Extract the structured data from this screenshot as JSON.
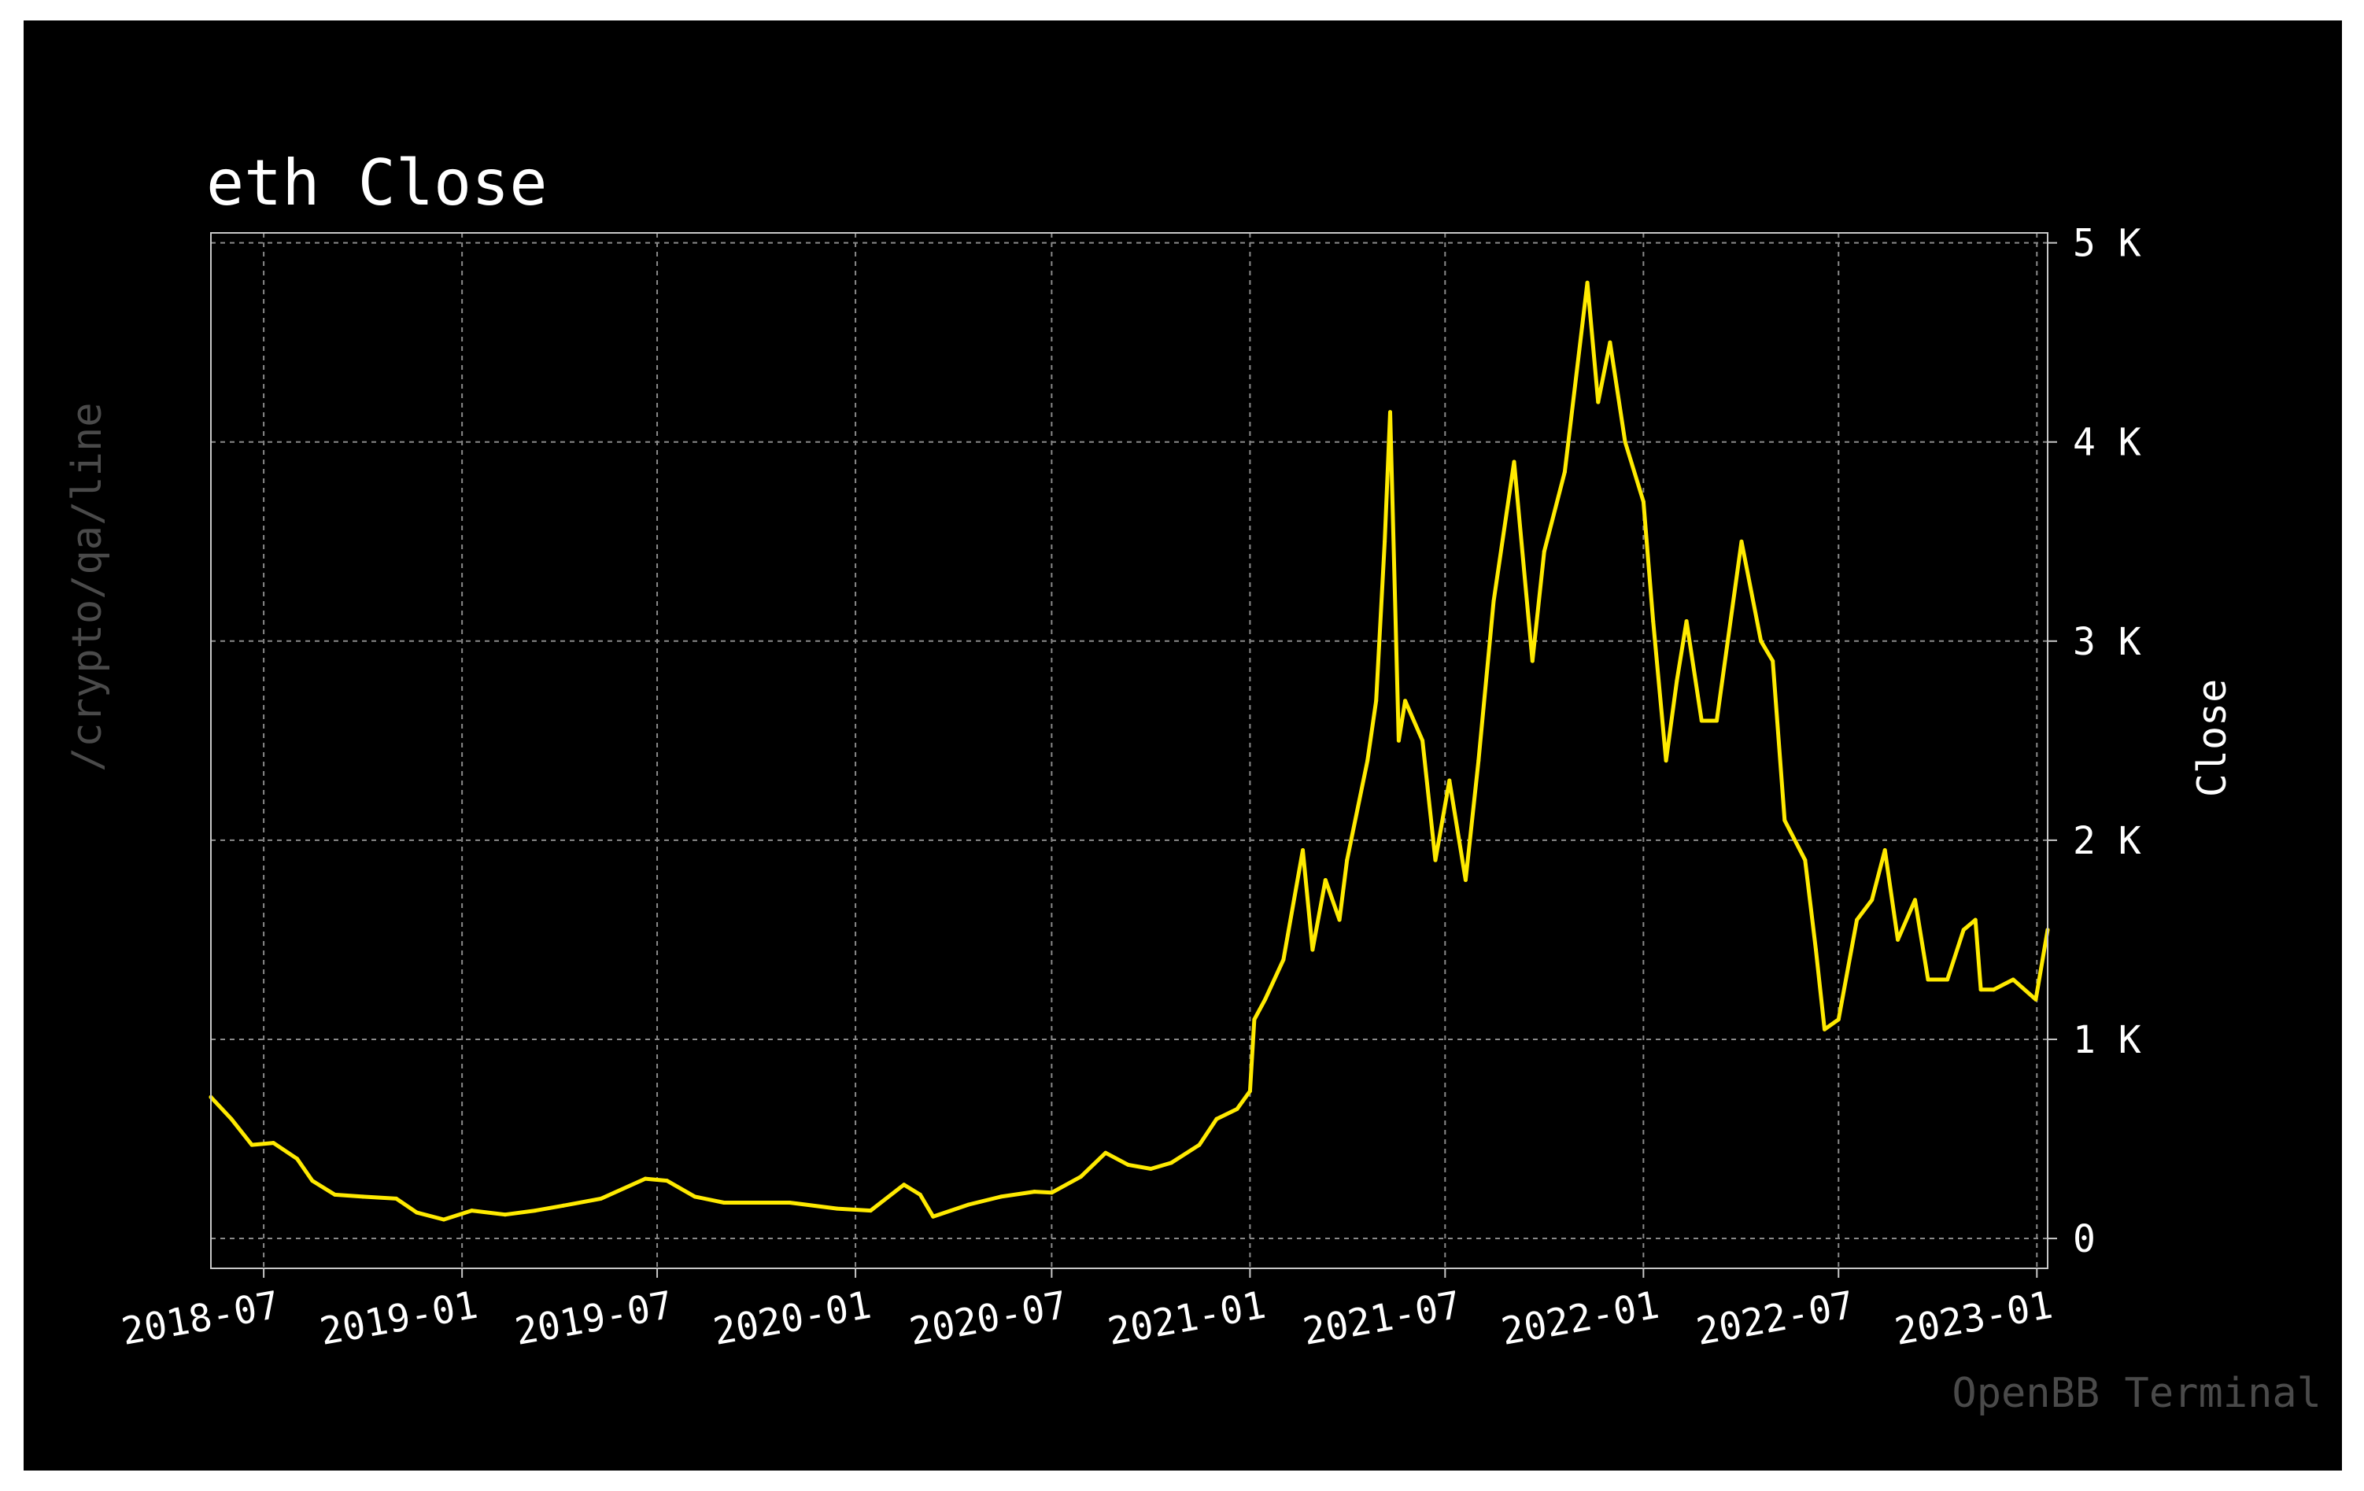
{
  "page": {
    "side_label": "/crypto/qa/line",
    "brand": "OpenBB Terminal"
  },
  "chart_data": {
    "type": "line",
    "title": "eth Close",
    "xlabel": "",
    "ylabel": "Close",
    "y_axis_side": "right",
    "grid": true,
    "line_color": "#ffea00",
    "background": "#000000",
    "xlim": [
      "2018-05-13",
      "2023-01-11"
    ],
    "ylim": [
      -150,
      5050
    ],
    "x_ticks": [
      "2018-07",
      "2019-01",
      "2019-07",
      "2020-01",
      "2020-07",
      "2021-01",
      "2021-07",
      "2022-01",
      "2022-07",
      "2023-01"
    ],
    "y_ticks": [
      {
        "value": 0,
        "label": "0"
      },
      {
        "value": 1000,
        "label": "1 K"
      },
      {
        "value": 2000,
        "label": "2 K"
      },
      {
        "value": 3000,
        "label": "3 K"
      },
      {
        "value": 4000,
        "label": "4 K"
      },
      {
        "value": 5000,
        "label": "5 K"
      }
    ],
    "series": [
      {
        "name": "",
        "x": [
          "2018-05-13",
          "2018-06-01",
          "2018-06-20",
          "2018-07-10",
          "2018-08-01",
          "2018-08-15",
          "2018-09-05",
          "2018-10-01",
          "2018-11-01",
          "2018-11-20",
          "2018-12-15",
          "2019-01-10",
          "2019-02-10",
          "2019-03-10",
          "2019-04-05",
          "2019-05-10",
          "2019-06-20",
          "2019-07-10",
          "2019-08-05",
          "2019-09-01",
          "2019-10-01",
          "2019-11-01",
          "2019-12-15",
          "2020-01-15",
          "2020-02-15",
          "2020-03-01",
          "2020-03-13",
          "2020-04-15",
          "2020-05-15",
          "2020-06-15",
          "2020-07-01",
          "2020-07-28",
          "2020-08-20",
          "2020-09-10",
          "2020-10-01",
          "2020-10-20",
          "2020-11-15",
          "2020-12-01",
          "2020-12-20",
          "2021-01-01",
          "2021-01-05",
          "2021-01-15",
          "2021-02-01",
          "2021-02-19",
          "2021-02-28",
          "2021-03-12",
          "2021-03-25",
          "2021-04-01",
          "2021-04-20",
          "2021-04-28",
          "2021-05-06",
          "2021-05-11",
          "2021-05-19",
          "2021-05-25",
          "2021-06-10",
          "2021-06-22",
          "2021-07-05",
          "2021-07-20",
          "2021-08-01",
          "2021-08-15",
          "2021-09-03",
          "2021-09-20",
          "2021-10-01",
          "2021-10-20",
          "2021-11-10",
          "2021-11-20",
          "2021-12-01",
          "2021-12-15",
          "2022-01-01",
          "2022-01-10",
          "2022-01-22",
          "2022-02-01",
          "2022-02-10",
          "2022-02-24",
          "2022-03-10",
          "2022-04-02",
          "2022-04-20",
          "2022-05-01",
          "2022-05-12",
          "2022-05-31",
          "2022-06-10",
          "2022-06-18",
          "2022-07-01",
          "2022-07-18",
          "2022-08-01",
          "2022-08-13",
          "2022-08-25",
          "2022-09-10",
          "2022-09-22",
          "2022-10-10",
          "2022-10-25",
          "2022-11-05",
          "2022-11-10",
          "2022-11-22",
          "2022-12-10",
          "2022-12-31",
          "2023-01-11"
        ],
        "values": [
          710,
          600,
          470,
          480,
          400,
          290,
          220,
          210,
          200,
          130,
          95,
          140,
          120,
          140,
          165,
          200,
          300,
          290,
          210,
          180,
          180,
          180,
          150,
          140,
          270,
          220,
          110,
          170,
          210,
          235,
          230,
          310,
          430,
          370,
          350,
          380,
          470,
          600,
          650,
          740,
          1100,
          1200,
          1400,
          1950,
          1450,
          1800,
          1600,
          1900,
          2400,
          2700,
          3500,
          4150,
          2500,
          2700,
          2500,
          1900,
          2300,
          1800,
          2400,
          3200,
          3900,
          2900,
          3450,
          3850,
          4800,
          4200,
          4500,
          4000,
          3700,
          3100,
          2400,
          2800,
          3100,
          2600,
          2600,
          3500,
          3000,
          2900,
          2100,
          1900,
          1450,
          1050,
          1100,
          1600,
          1700,
          1950,
          1500,
          1700,
          1300,
          1300,
          1550,
          1600,
          1250,
          1250,
          1300,
          1200,
          1550
        ]
      }
    ]
  }
}
